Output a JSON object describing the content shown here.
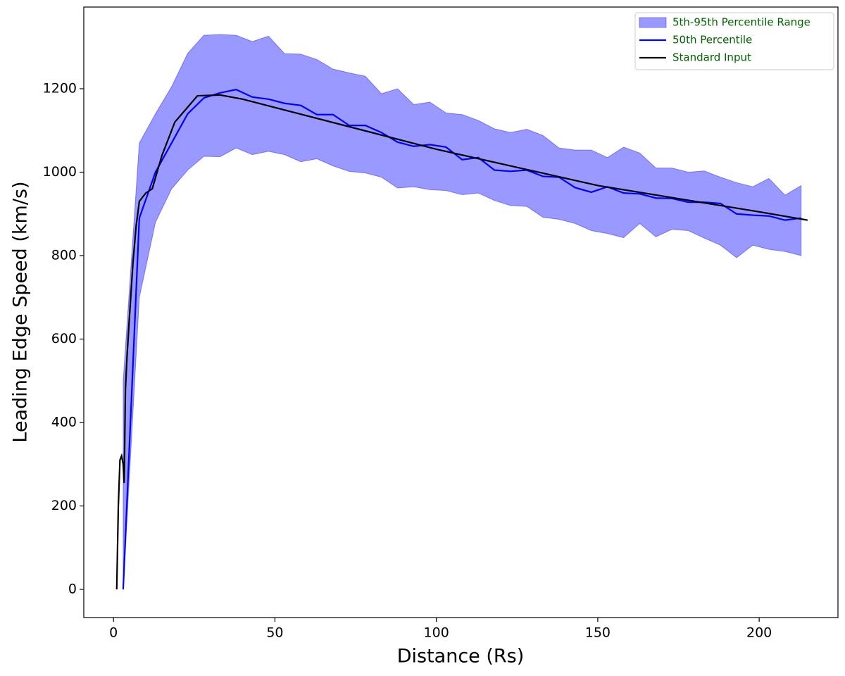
{
  "chart_data": {
    "type": "line",
    "xlabel": "Distance (Rs)",
    "ylabel": "Leading Edge Speed (km/s)",
    "xlim": [
      -9.2,
      224.4
    ],
    "ylim": [
      -67.5,
      1395.8
    ],
    "xticks": [
      0,
      50,
      100,
      150,
      200
    ],
    "yticks": [
      0,
      200,
      400,
      600,
      800,
      1000,
      1200
    ],
    "legend": "upper right",
    "legend_text_color": "#006400",
    "series": [
      {
        "name": "5th-95th Percentile Range",
        "kind": "band",
        "color": "#0000ff",
        "opacity": 0.4,
        "x": [
          3,
          8,
          13,
          18,
          23,
          28,
          33,
          38,
          43,
          48,
          53,
          58,
          63,
          68,
          73,
          78,
          83,
          88,
          93,
          98,
          103,
          108,
          113,
          118,
          123,
          128,
          133,
          138,
          143,
          148,
          153,
          158,
          163,
          168,
          173,
          178,
          183,
          188,
          193,
          198,
          203,
          208,
          213
        ],
        "upper": [
          500,
          1070,
          1140,
          1205,
          1285,
          1328,
          1330,
          1328,
          1313,
          1326,
          1284,
          1283,
          1270,
          1247,
          1238,
          1230,
          1188,
          1200,
          1162,
          1168,
          1142,
          1138,
          1124,
          1104,
          1095,
          1103,
          1088,
          1058,
          1053,
          1053,
          1035,
          1060,
          1046,
          1010,
          1010,
          1000,
          1003,
          988,
          975,
          965,
          985,
          945,
          968
        ],
        "lower": [
          0,
          700,
          880,
          960,
          1005,
          1038,
          1037,
          1058,
          1042,
          1050,
          1042,
          1025,
          1032,
          1015,
          1002,
          998,
          988,
          962,
          965,
          958,
          956,
          946,
          950,
          932,
          920,
          918,
          892,
          887,
          877,
          860,
          853,
          843,
          877,
          845,
          863,
          860,
          842,
          825,
          795,
          825,
          815,
          810,
          800
        ]
      },
      {
        "name": "50th Percentile",
        "kind": "line",
        "color": "#0000ff",
        "x": [
          3,
          8,
          13,
          18,
          23,
          28,
          33,
          38,
          43,
          48,
          53,
          58,
          63,
          68,
          73,
          78,
          83,
          88,
          93,
          98,
          103,
          108,
          113,
          118,
          123,
          128,
          133,
          138,
          143,
          148,
          153,
          158,
          163,
          168,
          173,
          178,
          183,
          188,
          193,
          198,
          203,
          208,
          213
        ],
        "values": [
          0,
          890,
          1000,
          1070,
          1140,
          1178,
          1190,
          1198,
          1180,
          1175,
          1165,
          1160,
          1138,
          1138,
          1112,
          1112,
          1095,
          1072,
          1062,
          1066,
          1060,
          1030,
          1035,
          1005,
          1002,
          1005,
          990,
          988,
          963,
          952,
          965,
          950,
          948,
          938,
          937,
          928,
          928,
          925,
          900,
          897,
          895,
          885,
          890
        ]
      },
      {
        "name": "Standard Input",
        "kind": "line",
        "color": "#000000",
        "x": [
          1,
          1.5,
          2,
          2.5,
          3,
          3.3,
          3.7,
          4.2,
          5,
          6,
          7,
          8,
          10,
          12,
          15,
          19,
          26,
          33,
          40,
          50,
          100,
          150,
          200,
          215
        ],
        "values": [
          0,
          200,
          310,
          320,
          300,
          255,
          480,
          560,
          660,
          780,
          870,
          930,
          950,
          960,
          1040,
          1120,
          1183,
          1185,
          1175,
          1155,
          1055,
          968,
          905,
          885
        ]
      }
    ]
  }
}
